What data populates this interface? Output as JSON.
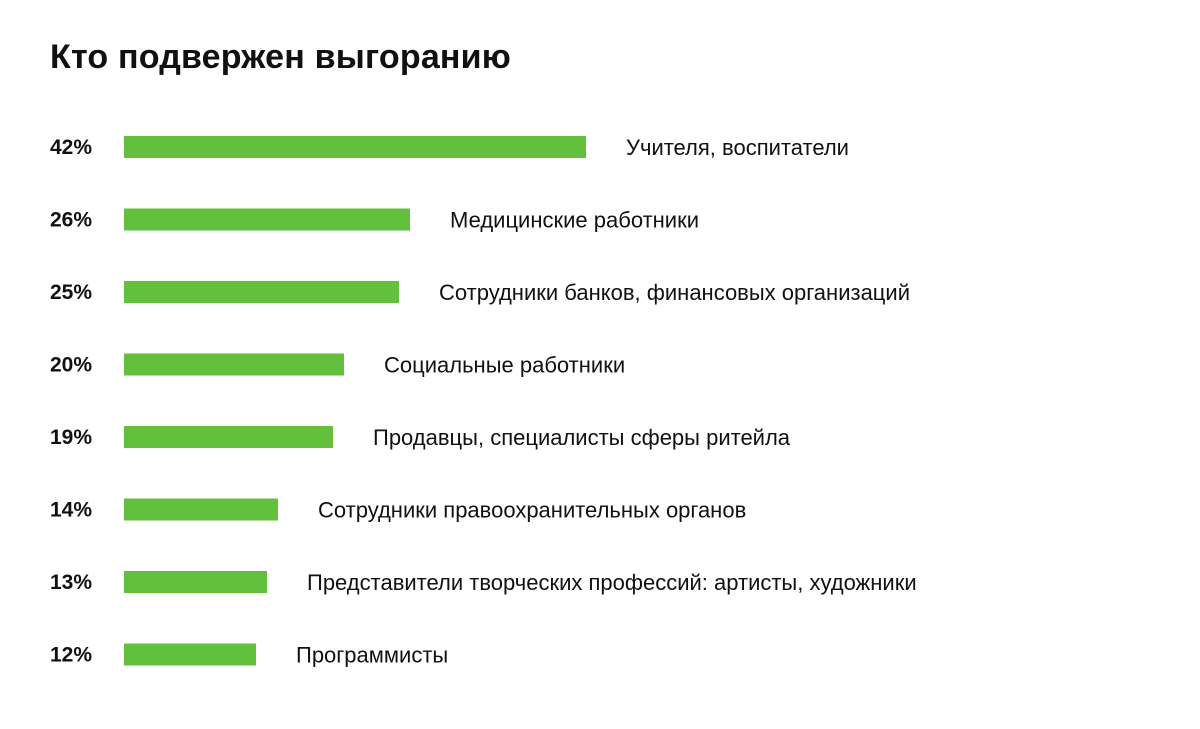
{
  "chart_data": {
    "type": "bar",
    "orientation": "horizontal",
    "title": "Кто подвержен выгоранию",
    "categories": [
      "Учителя, воспитатели",
      "Медицинские работники",
      "Сотрудники банков, финансовых организаций",
      "Социальные работники",
      "Продавцы, специалисты сферы ритейла",
      "Сотрудники правоохранительных органов",
      "Представители творческих профессий: артисты, художники",
      "Программисты"
    ],
    "values": [
      42,
      26,
      25,
      20,
      19,
      14,
      13,
      12
    ],
    "value_labels": [
      "42%",
      "26%",
      "25%",
      "20%",
      "19%",
      "14%",
      "13%",
      "12%"
    ],
    "unit": "%",
    "bar_color": "#62c03d",
    "grid": false,
    "legend": "none"
  }
}
